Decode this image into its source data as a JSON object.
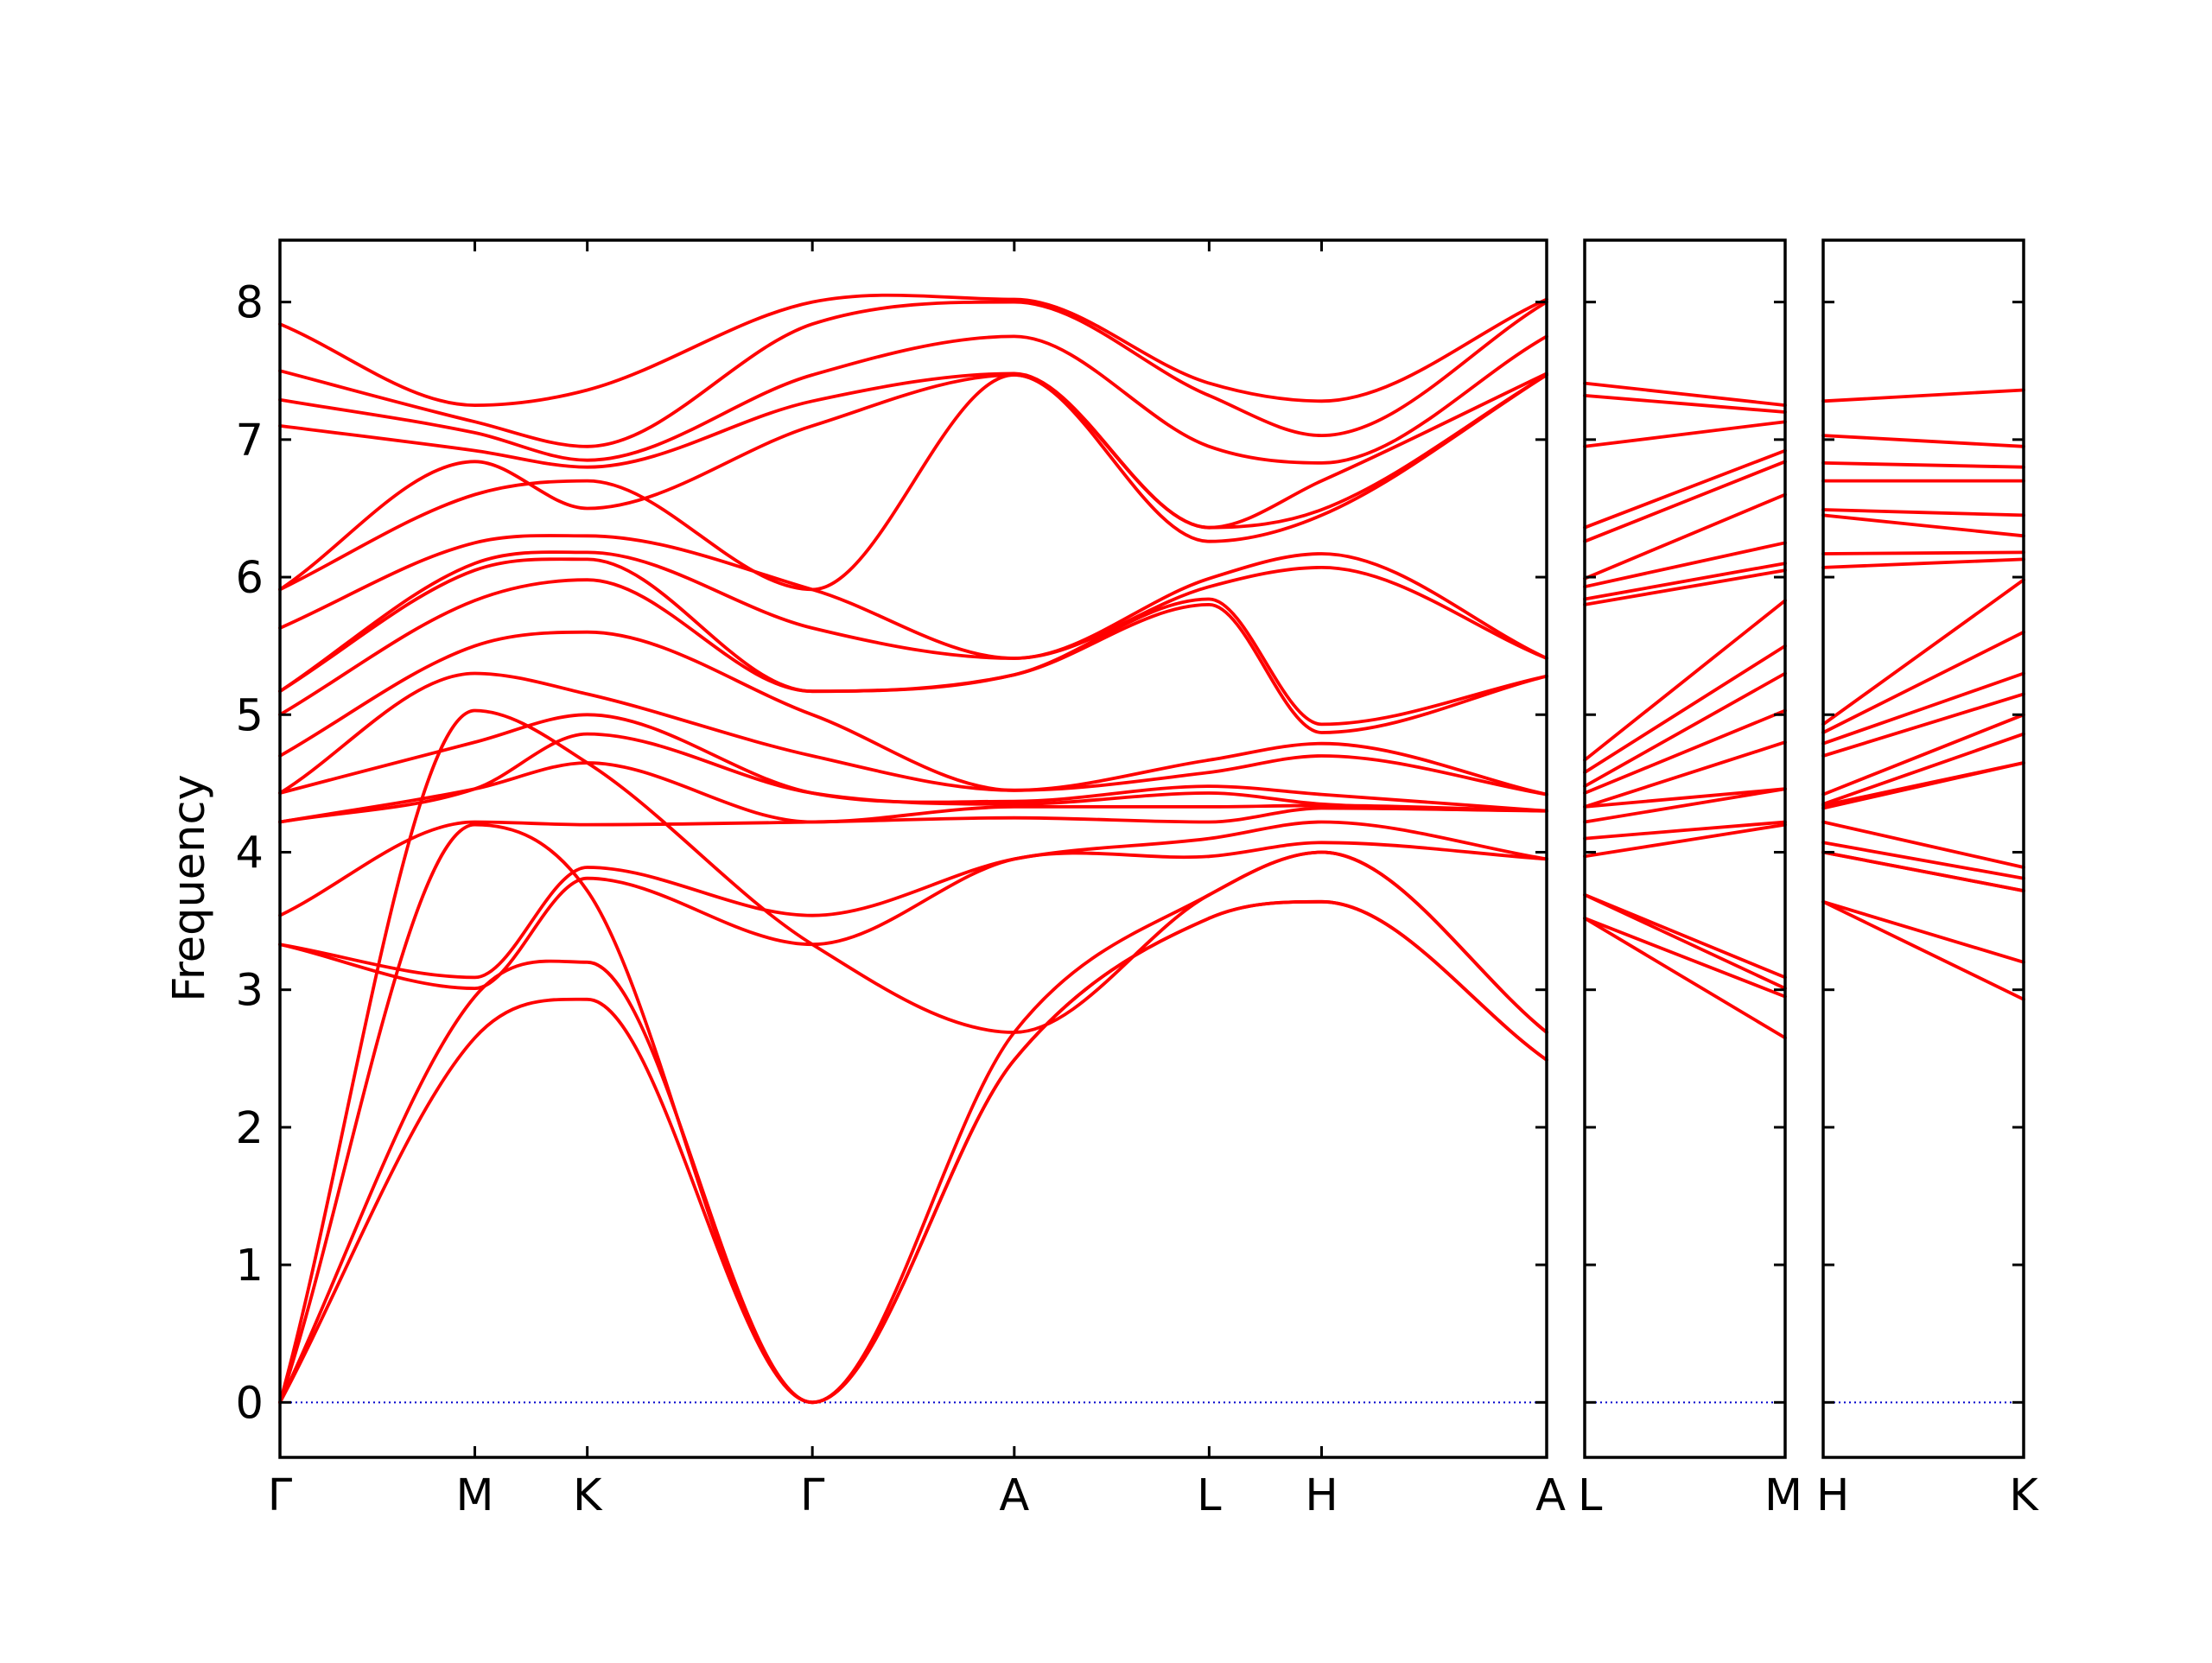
{
  "colors": {
    "band": "#ff0000",
    "zero_line": "#0000cc",
    "frame": "#000000",
    "background": "#ffffff"
  },
  "chart_data": {
    "type": "line",
    "title": "",
    "xlabel": "",
    "ylabel": "Frequency",
    "ylim": [
      -0.4,
      8.45
    ],
    "yticks": [
      "0",
      "1",
      "2",
      "3",
      "4",
      "5",
      "6",
      "7",
      "8"
    ],
    "grid": false,
    "legend": "none",
    "zero_line": 0,
    "panels": [
      {
        "path": [
          "Γ",
          "M",
          "K",
          "Γ",
          "A",
          "L",
          "H",
          "A"
        ],
        "x": [
          0,
          1,
          1.577,
          2.732,
          3.768,
          4.768,
          5.345,
          6.5
        ],
        "bands": [
          [
            0,
            2.65,
            2.93,
            0,
            2.49,
            3.52,
            3.64,
            2.49
          ],
          [
            0,
            2.95,
            3.2,
            0,
            2.49,
            3.52,
            3.64,
            2.49
          ],
          [
            0,
            4.2,
            3.72,
            0,
            2.69,
            3.69,
            4.0,
            2.69
          ],
          [
            0,
            5.03,
            4.65,
            3.33,
            2.69,
            3.69,
            4.0,
            2.69
          ],
          [
            3.33,
            3.01,
            3.81,
            3.33,
            3.95,
            3.97,
            4.07,
            3.95
          ],
          [
            3.33,
            3.09,
            3.89,
            3.54,
            3.95,
            4.1,
            4.22,
            3.95
          ],
          [
            3.54,
            4.22,
            4.2,
            4.22,
            4.25,
            4.22,
            4.32,
            4.3
          ],
          [
            4.22,
            4.46,
            4.65,
            4.22,
            4.33,
            4.33,
            4.34,
            4.3
          ],
          [
            4.22,
            4.46,
            4.86,
            4.43,
            4.35,
            4.43,
            4.35,
            4.3
          ],
          [
            4.43,
            4.8,
            5.0,
            4.43,
            4.37,
            4.48,
            4.42,
            4.3
          ],
          [
            4.43,
            5.3,
            5.15,
            4.7,
            4.45,
            4.58,
            4.7,
            4.42
          ],
          [
            4.7,
            5.5,
            5.6,
            5.0,
            4.45,
            4.67,
            4.79,
            4.42
          ],
          [
            5.0,
            5.83,
            5.98,
            5.17,
            5.29,
            5.8,
            4.87,
            5.28
          ],
          [
            5.17,
            6.05,
            6.13,
            5.17,
            5.29,
            5.84,
            4.93,
            5.28
          ],
          [
            5.17,
            6.1,
            6.18,
            5.63,
            5.41,
            5.93,
            6.07,
            5.41
          ],
          [
            5.63,
            6.25,
            6.3,
            5.91,
            5.41,
            5.99,
            6.17,
            5.41
          ],
          [
            5.91,
            6.6,
            6.7,
            5.91,
            7.47,
            6.26,
            6.45,
            7.47
          ],
          [
            5.91,
            6.84,
            6.5,
            7.1,
            7.47,
            6.36,
            6.49,
            7.47
          ],
          [
            7.1,
            6.92,
            6.8,
            7.28,
            7.48,
            6.36,
            6.7,
            7.48
          ],
          [
            7.29,
            7.05,
            6.85,
            7.47,
            7.75,
            6.95,
            6.83,
            7.75
          ],
          [
            7.5,
            7.13,
            6.95,
            7.84,
            8.0,
            7.32,
            7.03,
            8.0
          ],
          [
            7.84,
            7.25,
            7.36,
            8.0,
            8.02,
            7.41,
            7.28,
            8.02
          ]
        ]
      },
      {
        "path": [
          "L",
          "M"
        ],
        "x": [
          0,
          1
        ],
        "bands": [
          [
            3.52,
            2.65
          ],
          [
            3.52,
            2.95
          ],
          [
            3.69,
            3.01
          ],
          [
            3.69,
            3.09
          ],
          [
            3.97,
            4.2
          ],
          [
            4.1,
            4.22
          ],
          [
            4.22,
            4.46
          ],
          [
            4.33,
            4.46
          ],
          [
            4.33,
            4.8
          ],
          [
            4.43,
            5.03
          ],
          [
            4.48,
            5.3
          ],
          [
            4.58,
            5.5
          ],
          [
            4.67,
            5.83
          ],
          [
            5.8,
            6.05
          ],
          [
            5.84,
            6.1
          ],
          [
            5.93,
            6.25
          ],
          [
            5.99,
            6.6
          ],
          [
            6.26,
            6.84
          ],
          [
            6.36,
            6.92
          ],
          [
            6.95,
            7.13
          ],
          [
            7.32,
            7.2
          ],
          [
            7.41,
            7.25
          ]
        ]
      },
      {
        "path": [
          "H",
          "K"
        ],
        "x": [
          0,
          1
        ],
        "bands": [
          [
            3.64,
            2.93
          ],
          [
            3.64,
            3.2
          ],
          [
            4.0,
            3.72
          ],
          [
            4.0,
            3.72
          ],
          [
            4.07,
            3.81
          ],
          [
            4.22,
            3.89
          ],
          [
            4.32,
            4.65
          ],
          [
            4.34,
            4.65
          ],
          [
            4.35,
            4.86
          ],
          [
            4.42,
            5.0
          ],
          [
            4.7,
            5.15
          ],
          [
            4.79,
            5.3
          ],
          [
            4.87,
            5.6
          ],
          [
            4.93,
            5.98
          ],
          [
            6.07,
            6.13
          ],
          [
            6.17,
            6.18
          ],
          [
            6.45,
            6.3
          ],
          [
            6.49,
            6.45
          ],
          [
            6.7,
            6.7
          ],
          [
            6.83,
            6.8
          ],
          [
            7.03,
            6.95
          ],
          [
            7.28,
            7.36
          ]
        ]
      }
    ]
  }
}
